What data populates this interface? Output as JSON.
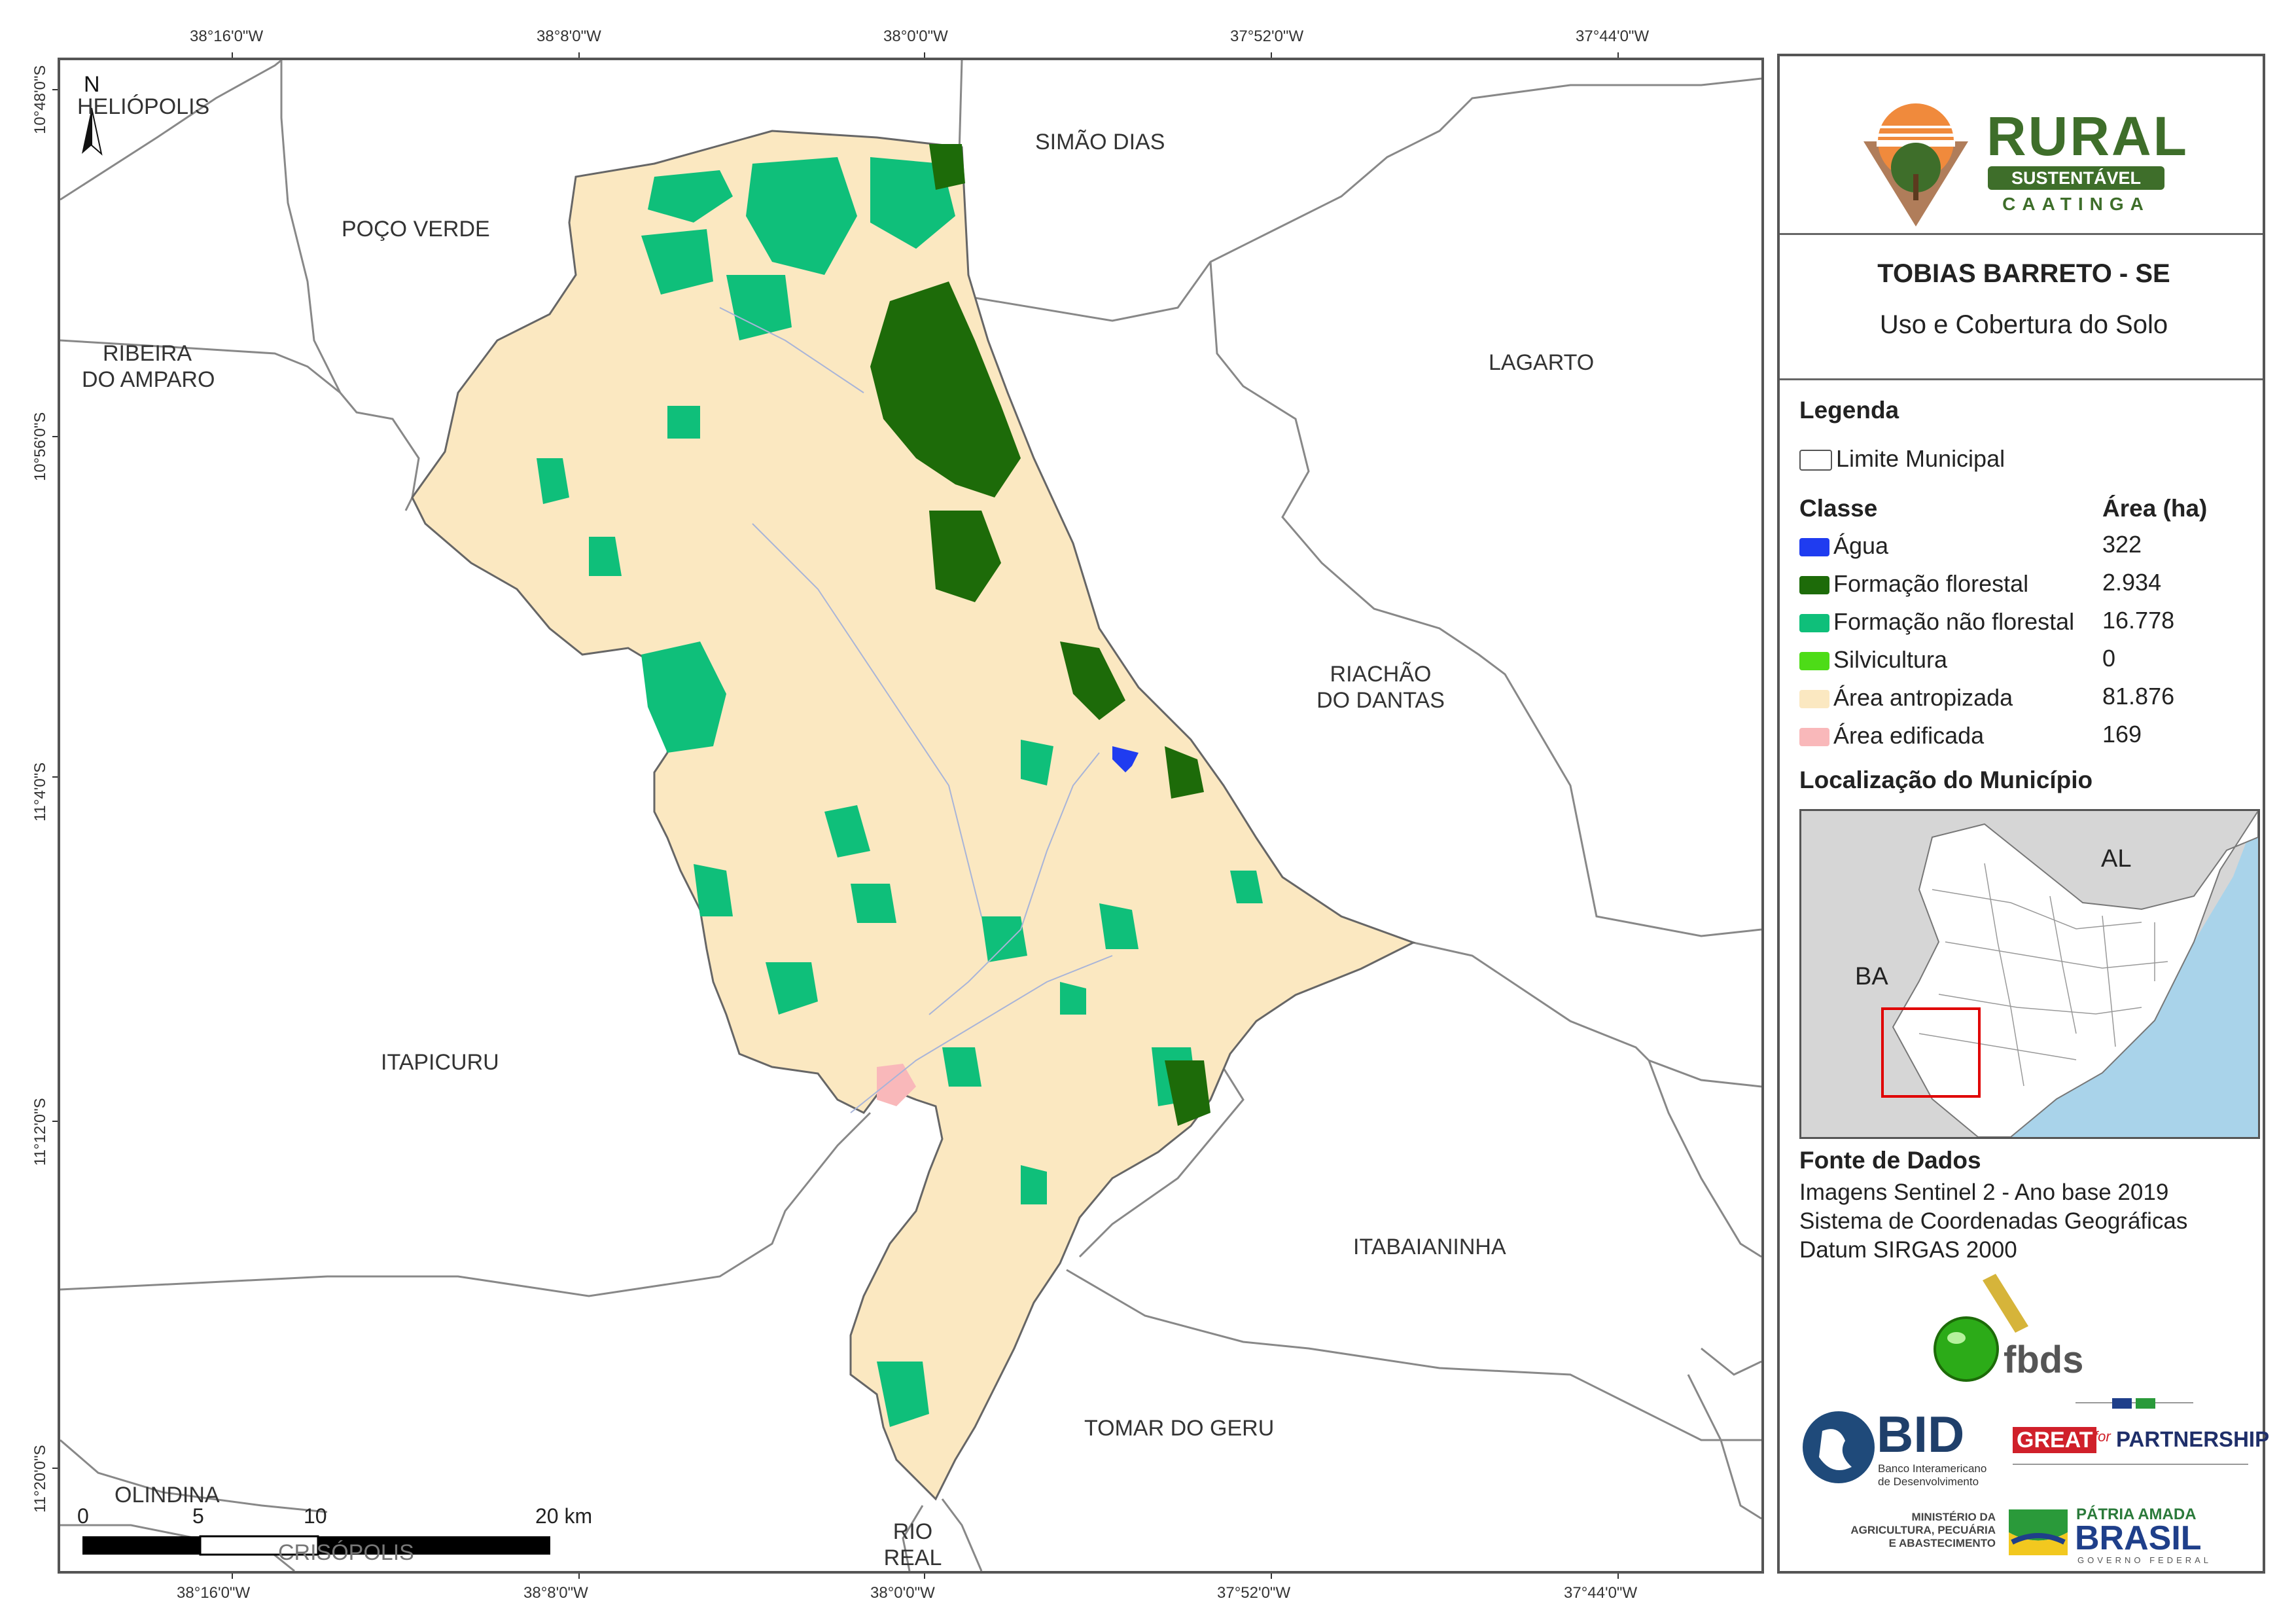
{
  "map": {
    "north_label": "N",
    "x_ticks": [
      "38°16'0\"W",
      "38°8'0\"W",
      "38°0'0\"W",
      "37°52'0\"W",
      "37°44'0\"W"
    ],
    "y_ticks": [
      "10°48'0\"S",
      "10°56'0\"S",
      "11°4'0\"S",
      "11°12'0\"S",
      "11°20'0\"S"
    ],
    "places": {
      "heliopolis": "HELIÓPOLIS",
      "poco_verde": "POÇO VERDE",
      "simao_dias": "SIMÃO DIAS",
      "ribeira_l1": "RIBEIRA",
      "ribeira_l2": "DO AMPARO",
      "lagarto": "LAGARTO",
      "riachao_l1": "RIACHÃO",
      "riachao_l2": "DO DANTAS",
      "itapicuru": "ITAPICURU",
      "itabaianinha": "ITABAIANINHA",
      "tomar": "TOMAR DO GERU",
      "olindina": "OLINDINA",
      "crisopolis": "CRISÓPOLIS",
      "rio_real_l1": "RIO",
      "rio_real_l2": "REAL"
    },
    "scale": {
      "t0": "0",
      "t5": "5",
      "t10": "10",
      "t20": "20 km"
    }
  },
  "panel": {
    "logo": {
      "rural": "RURAL",
      "sustentavel": "SUSTENTÁVEL",
      "caatinga": "CAATINGA"
    },
    "title": "TOBIAS BARRETO - SE",
    "subtitle": "Uso e Cobertura do Solo",
    "legend": {
      "heading": "Legenda",
      "limit_label": "Limite Municipal",
      "class_header": "Classe",
      "area_header": "Área (ha)",
      "classes": [
        {
          "label": "Água",
          "value": "322",
          "color": "#1f3cf0"
        },
        {
          "label": "Formação florestal",
          "value": "2.934",
          "color": "#1d6b09"
        },
        {
          "label": "Formação não florestal",
          "value": "16.778",
          "color": "#0fbf7a"
        },
        {
          "label": "Silvicultura",
          "value": "0",
          "color": "#4ddc17"
        },
        {
          "label": "Área antropizada",
          "value": "81.876",
          "color": "#fbe8c1"
        },
        {
          "label": "Área edificada",
          "value": "169",
          "color": "#f9b8ba"
        }
      ]
    },
    "location": {
      "heading": "Localização do Município",
      "al": "AL",
      "ba": "BA"
    },
    "source": {
      "heading": "Fonte de Dados",
      "line1": "Imagens Sentinel 2 - Ano base 2019",
      "line2": "Sistema de Coordenadas Geográficas",
      "line3": "Datum SIRGAS 2000"
    },
    "logos": {
      "fbds": "fbds",
      "bid": "BID",
      "bid_sub1": "Banco Interamericano",
      "bid_sub2": "de Desenvolvimento",
      "great": "GREAT",
      "for": "for",
      "partnership": "PARTNERSHIP",
      "min1": "MINISTÉRIO DA",
      "min2": "AGRICULTURA, PECUÁRIA",
      "min3": "E ABASTECIMENTO",
      "patria": "PÁTRIA AMADA",
      "brasil": "BRASIL",
      "governo": "GOVERNO FEDERAL"
    }
  }
}
